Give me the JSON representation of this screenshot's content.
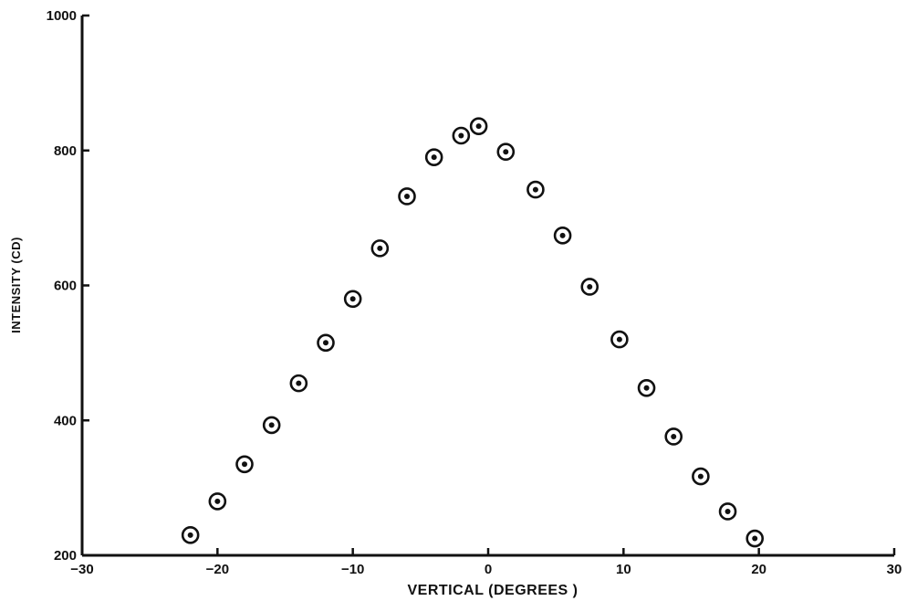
{
  "chart_data": {
    "type": "scatter",
    "title": "",
    "xlabel": "VERTICAL (DEGREES )",
    "ylabel": "INTENSITY (CD)",
    "xlim": [
      -30,
      30
    ],
    "ylim": [
      200,
      1000
    ],
    "x_ticks": [
      -30,
      -20,
      -10,
      0,
      10,
      20,
      30
    ],
    "y_ticks": [
      200,
      400,
      600,
      800,
      1000
    ],
    "x_tick_labels": [
      "−30",
      "−20",
      "−10",
      "0",
      "10",
      "20",
      "30"
    ],
    "y_tick_labels": [
      "200",
      "400",
      "600",
      "800",
      "1000"
    ],
    "grid": false,
    "marker": "circled-dot",
    "points": [
      {
        "x": -22,
        "y": 230
      },
      {
        "x": -20,
        "y": 280
      },
      {
        "x": -18,
        "y": 335
      },
      {
        "x": -16,
        "y": 393
      },
      {
        "x": -14,
        "y": 455
      },
      {
        "x": -12,
        "y": 515
      },
      {
        "x": -10,
        "y": 580
      },
      {
        "x": -8,
        "y": 655
      },
      {
        "x": -6,
        "y": 732
      },
      {
        "x": -4,
        "y": 790
      },
      {
        "x": -2,
        "y": 822
      },
      {
        "x": -0.7,
        "y": 836
      },
      {
        "x": 1.3,
        "y": 798
      },
      {
        "x": 3.5,
        "y": 742
      },
      {
        "x": 5.5,
        "y": 674
      },
      {
        "x": 7.5,
        "y": 598
      },
      {
        "x": 9.7,
        "y": 520
      },
      {
        "x": 11.7,
        "y": 448
      },
      {
        "x": 13.7,
        "y": 376
      },
      {
        "x": 15.7,
        "y": 317
      },
      {
        "x": 17.7,
        "y": 265
      },
      {
        "x": 19.7,
        "y": 225
      }
    ]
  }
}
